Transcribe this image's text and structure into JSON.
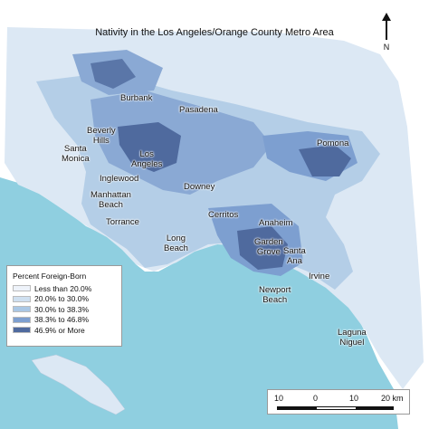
{
  "map": {
    "title": "Nativity in the Los Angeles/Orange County Metro Area",
    "north_label": "N",
    "cities": [
      {
        "name": "Burbank"
      },
      {
        "name": "Pasadena"
      },
      {
        "name": "Beverly\nHills"
      },
      {
        "name": "Santa\nMonica"
      },
      {
        "name": "Los\nAngeles"
      },
      {
        "name": "Pomona"
      },
      {
        "name": "Inglewood"
      },
      {
        "name": "Downey"
      },
      {
        "name": "Manhattan\nBeach"
      },
      {
        "name": "Torrance"
      },
      {
        "name": "Cerritos"
      },
      {
        "name": "Anaheim"
      },
      {
        "name": "Garden\nGrove"
      },
      {
        "name": "Santa\nAna"
      },
      {
        "name": "Long\nBeach"
      },
      {
        "name": "Irvine"
      },
      {
        "name": "Newport\nBeach"
      },
      {
        "name": "Laguna\nNiguel"
      }
    ]
  },
  "legend": {
    "title": "Percent Foreign-Born",
    "classes": [
      {
        "label": "Less than 20.0%",
        "color": "#eef3fa"
      },
      {
        "label": "20.0% to 30.0%",
        "color": "#cfe0f0"
      },
      {
        "label": "30.0% to 38.3%",
        "color": "#a9c7e5"
      },
      {
        "label": "38.3% to 46.8%",
        "color": "#7d9fd0"
      },
      {
        "label": "46.9% or More",
        "color": "#4f6a9e"
      }
    ]
  },
  "scalebar": {
    "ticks": [
      "10",
      "0",
      "10",
      "20 km"
    ]
  },
  "colors": {
    "ocean": "#8fcfe0",
    "land_unpopulated": "#ffffff"
  }
}
